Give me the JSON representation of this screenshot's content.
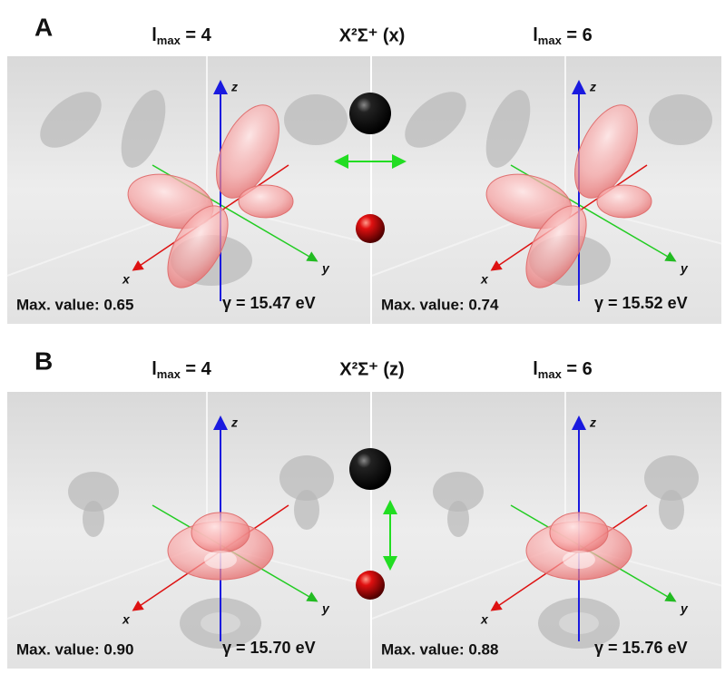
{
  "panels": [
    {
      "label": "A",
      "left_title": {
        "symbol": "l",
        "subscript": "max",
        "rest": " = 4"
      },
      "center_title": "X²Σ⁺ (x)",
      "right_title": {
        "symbol": "l",
        "subscript": "max",
        "rest": " = 6"
      },
      "subpanels": [
        {
          "max_value": "Max. value: 0.65",
          "energy": "γ = 15.47 eV"
        },
        {
          "max_value": "Max. value: 0.74",
          "energy": "γ = 15.52 eV"
        }
      ]
    },
    {
      "label": "B",
      "left_title": {
        "symbol": "l",
        "subscript": "max",
        "rest": " = 4"
      },
      "center_title": "X²Σ⁺ (z)",
      "right_title": {
        "symbol": "l",
        "subscript": "max",
        "rest": " = 6"
      },
      "subpanels": [
        {
          "max_value": "Max. value: 0.90",
          "energy": "γ = 15.70 eV"
        },
        {
          "max_value": "Max. value: 0.88",
          "energy": "γ = 15.76 eV"
        }
      ]
    }
  ],
  "axis_labels": {
    "x": "x",
    "y": "y",
    "z": "z"
  }
}
